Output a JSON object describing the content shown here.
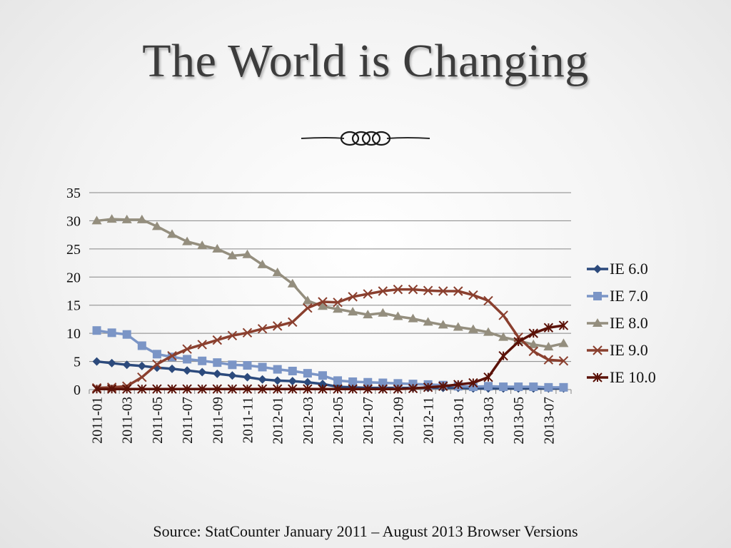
{
  "slide": {
    "title": "The World is Changing",
    "source": "Source: StatCounter January 2011 – August 2013 Browser Versions"
  },
  "colors": {
    "grid": "#868686",
    "ie6": "#2c4a7c",
    "ie7": "#7b95c6",
    "ie8": "#948e7e",
    "ie9": "#8a3f2e",
    "ie10": "#5b1208"
  },
  "chart_data": {
    "type": "line",
    "ylim": [
      0,
      35
    ],
    "yticks": [
      "0",
      "5",
      "10",
      "15",
      "20",
      "25",
      "30",
      "35"
    ],
    "grid": true,
    "legend": "right",
    "x": [
      "2011-01",
      "2011-02",
      "2011-03",
      "2011-04",
      "2011-05",
      "2011-06",
      "2011-07",
      "2011-08",
      "2011-09",
      "2011-10",
      "2011-11",
      "2011-12",
      "2012-01",
      "2012-02",
      "2012-03",
      "2012-04",
      "2012-05",
      "2012-06",
      "2012-07",
      "2012-08",
      "2012-09",
      "2012-10",
      "2012-11",
      "2012-12",
      "2013-01",
      "2013-02",
      "2013-03",
      "2013-04",
      "2013-05",
      "2013-06",
      "2013-07",
      "2013-08"
    ],
    "xtick_labels": [
      "2011-01",
      "2011-03",
      "2011-05",
      "2011-07",
      "2011-09",
      "2011-11",
      "2012-01",
      "2012-03",
      "2012-05",
      "2012-07",
      "2012-09",
      "2012-11",
      "2013-01",
      "2013-03",
      "2013-05",
      "2013-07"
    ],
    "series": [
      {
        "name": "IE 6.0",
        "marker": "diamond",
        "color": "#2c4a7c",
        "values": [
          5.0,
          4.7,
          4.4,
          4.2,
          3.9,
          3.7,
          3.4,
          3.1,
          2.8,
          2.5,
          2.2,
          1.8,
          1.6,
          1.5,
          1.3,
          1.0,
          0.5,
          0.4,
          0.3,
          0.3,
          0.3,
          0.3,
          0.3,
          0.3,
          0.3,
          0.2,
          0.2,
          0.2,
          0.2,
          0.2,
          0.2,
          0.2
        ]
      },
      {
        "name": "IE 7.0",
        "marker": "square",
        "color": "#7b95c6",
        "values": [
          10.5,
          10.1,
          9.8,
          7.8,
          6.3,
          5.8,
          5.4,
          5.1,
          4.8,
          4.4,
          4.3,
          4.0,
          3.6,
          3.3,
          2.9,
          2.5,
          1.6,
          1.4,
          1.3,
          1.2,
          1.1,
          1.0,
          0.9,
          0.8,
          0.6,
          0.5,
          0.6,
          0.5,
          0.5,
          0.5,
          0.4,
          0.4
        ]
      },
      {
        "name": "IE 8.0",
        "marker": "triangle",
        "color": "#948e7e",
        "values": [
          30.0,
          30.3,
          30.2,
          30.2,
          29.0,
          27.6,
          26.3,
          25.6,
          25.0,
          23.8,
          24.0,
          22.2,
          20.8,
          18.8,
          15.8,
          14.8,
          14.3,
          13.8,
          13.3,
          13.6,
          13.0,
          12.6,
          12.0,
          11.5,
          11.1,
          10.7,
          10.2,
          9.3,
          8.7,
          8.0,
          7.6,
          8.2
        ]
      },
      {
        "name": "IE 9.0",
        "marker": "x",
        "color": "#8a3f2e",
        "values": [
          0.3,
          0.4,
          0.6,
          2.2,
          4.5,
          6.0,
          7.2,
          8.0,
          8.8,
          9.6,
          10.1,
          10.8,
          11.3,
          12.0,
          14.5,
          15.6,
          15.5,
          16.5,
          17.0,
          17.5,
          17.8,
          17.8,
          17.6,
          17.5,
          17.5,
          16.8,
          15.8,
          13.2,
          9.3,
          6.8,
          5.3,
          5.1
        ]
      },
      {
        "name": "IE 10.0",
        "marker": "star",
        "color": "#5b1208",
        "values": [
          0.1,
          0.1,
          0.1,
          0.1,
          0.1,
          0.1,
          0.1,
          0.1,
          0.1,
          0.1,
          0.1,
          0.1,
          0.1,
          0.1,
          0.1,
          0.1,
          0.1,
          0.1,
          0.1,
          0.1,
          0.1,
          0.2,
          0.4,
          0.6,
          0.9,
          1.2,
          2.2,
          6.0,
          8.5,
          10.0,
          11.0,
          11.4
        ]
      }
    ]
  }
}
